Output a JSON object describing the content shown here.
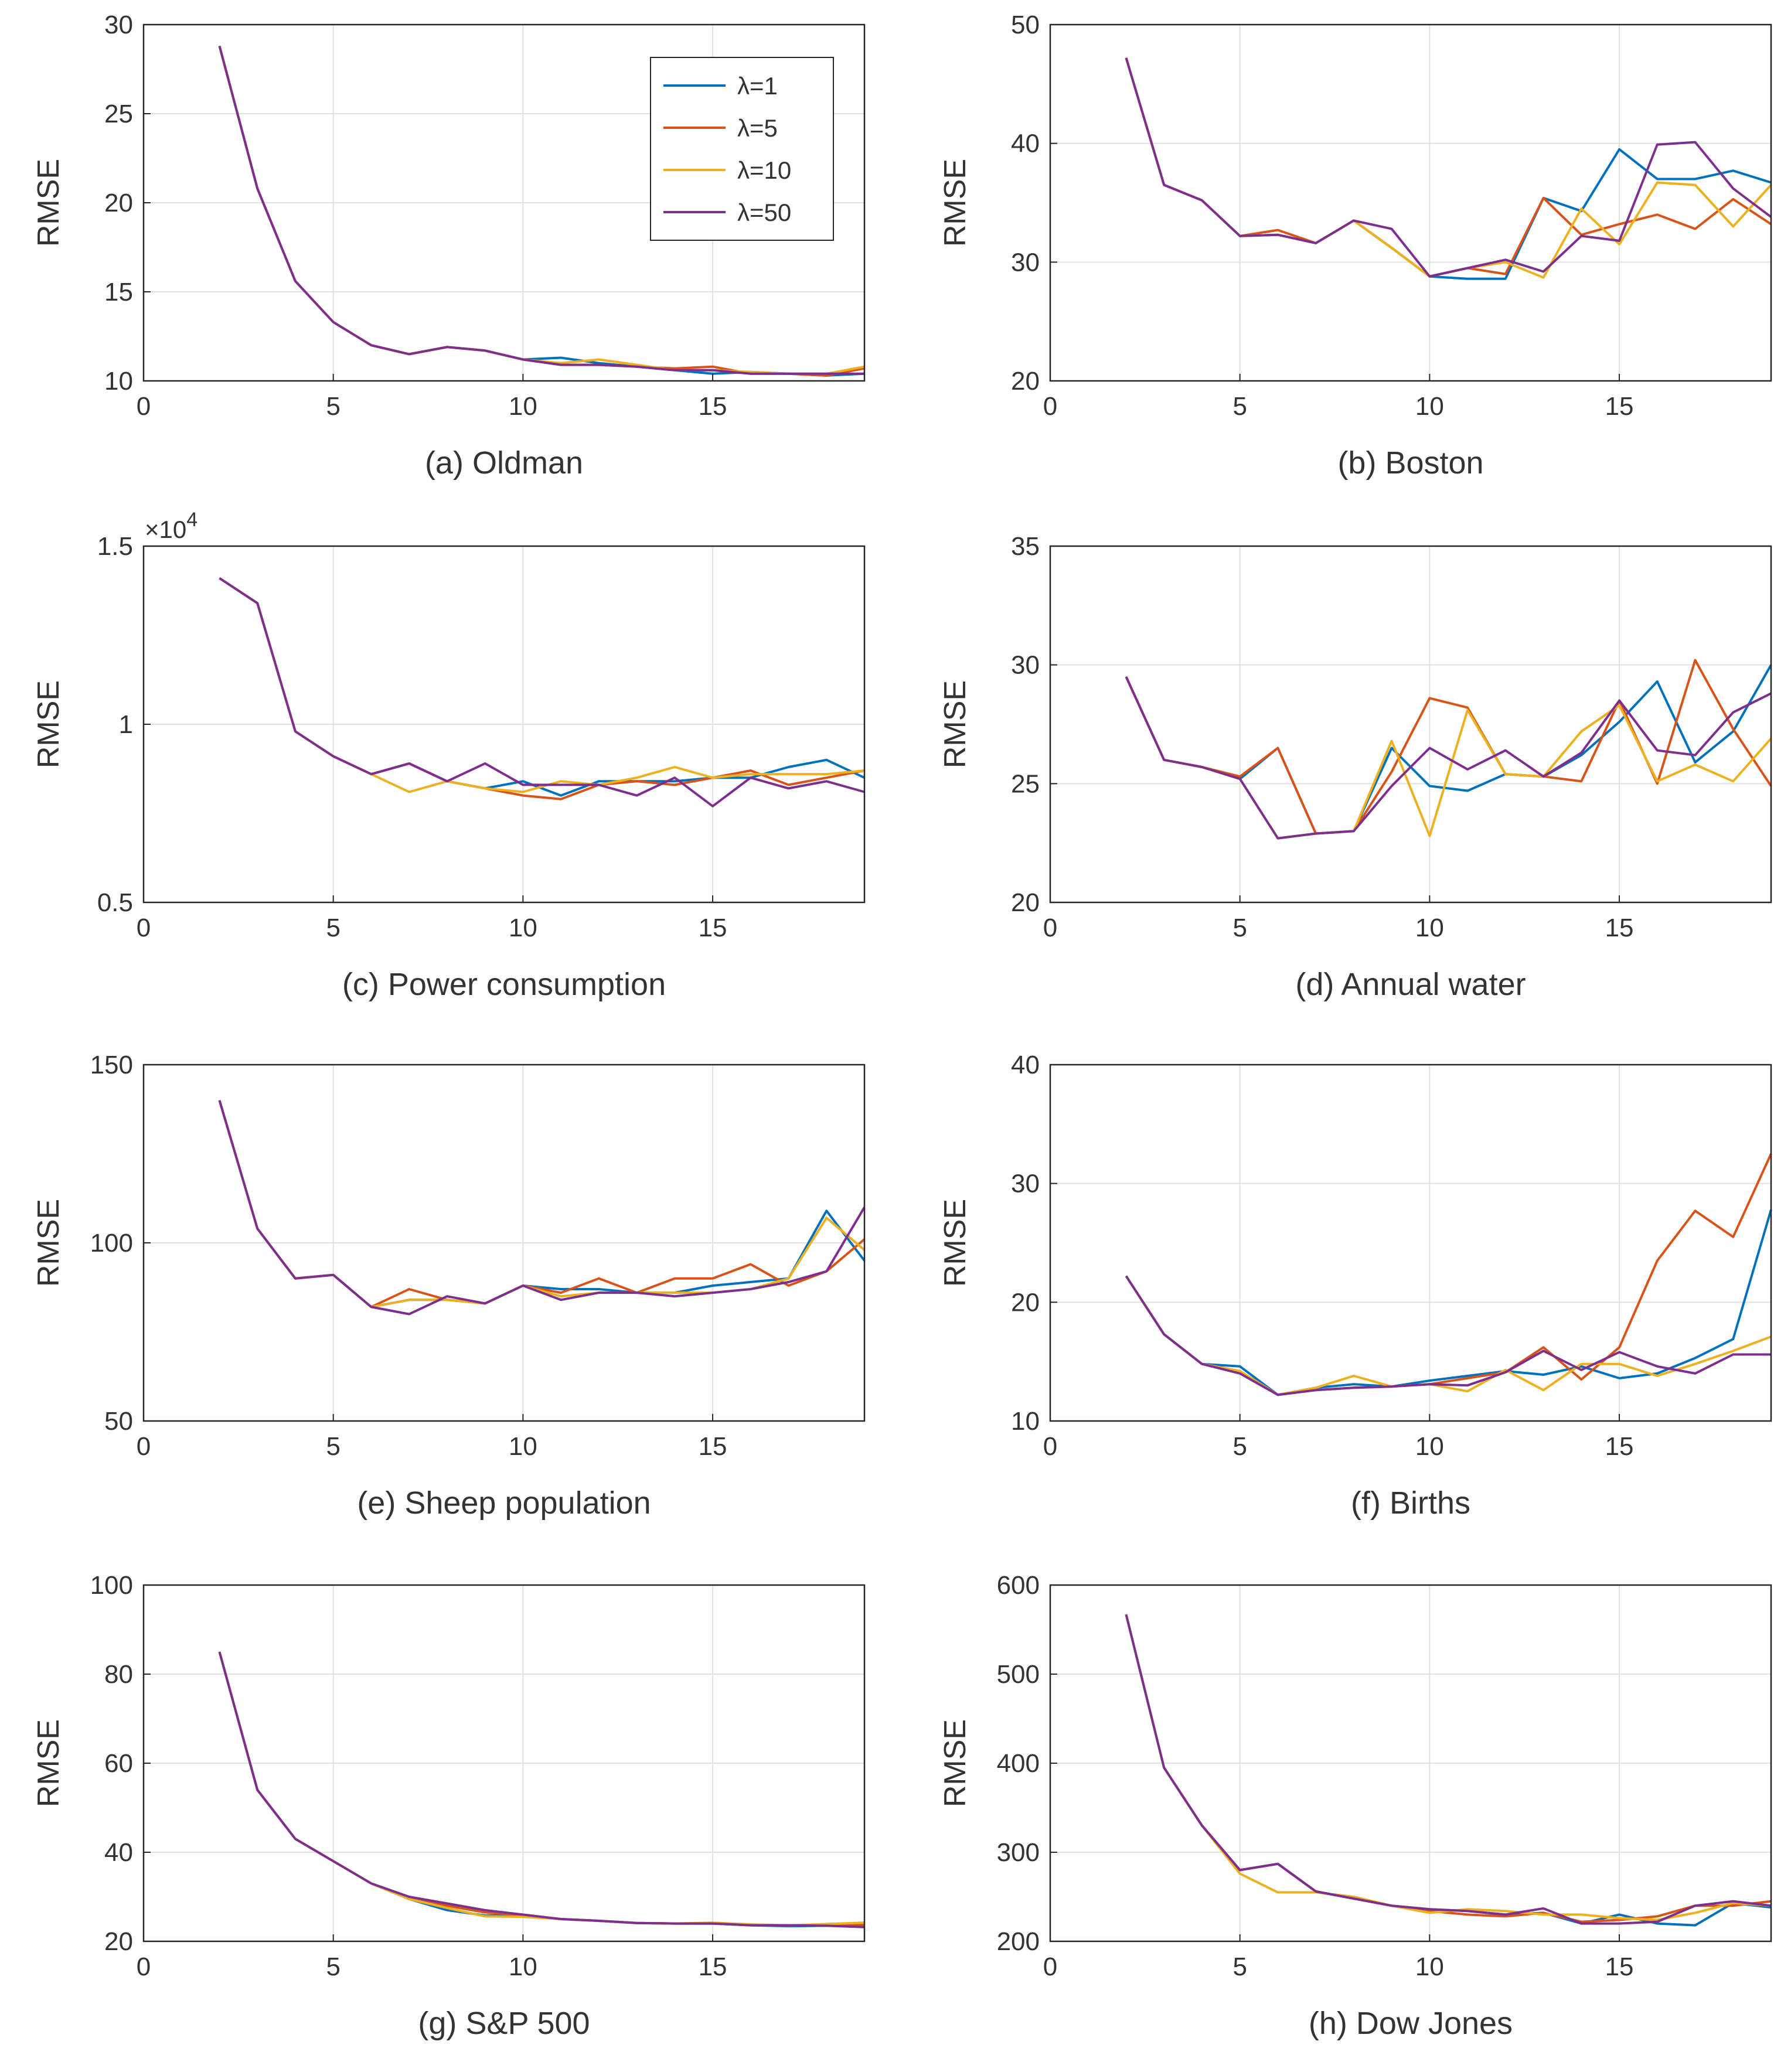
{
  "colors": {
    "lambda1": "#0072BD",
    "lambda5": "#D95319",
    "lambda10": "#EDB120",
    "lambda50": "#7E2F8E",
    "grid": "#e0e0e0",
    "axis": "#262626"
  },
  "legend": [
    "λ=1",
    "λ=5",
    "λ=10",
    "λ=50"
  ],
  "chart_data": [
    {
      "type": "line",
      "title": "(a) Oldman",
      "ylabel": "RMSE",
      "xlim": [
        0,
        19
      ],
      "ylim": [
        10,
        30
      ],
      "xticks": [
        "0",
        "5",
        "10",
        "15"
      ],
      "yticks": [
        "10",
        "15",
        "20",
        "25",
        "30"
      ],
      "x": [
        2,
        3,
        4,
        5,
        6,
        7,
        8,
        9,
        10,
        11,
        12,
        13,
        14,
        15,
        16,
        17,
        18,
        19
      ],
      "series": [
        {
          "name": "λ=1",
          "values": [
            28.8,
            20.8,
            15.6,
            13.3,
            12.0,
            11.5,
            11.9,
            11.7,
            11.2,
            11.3,
            11.0,
            10.8,
            10.6,
            10.4,
            10.5,
            10.4,
            10.3,
            10.4
          ]
        },
        {
          "name": "λ=5",
          "values": [
            28.8,
            20.8,
            15.6,
            13.3,
            12.0,
            11.5,
            11.9,
            11.7,
            11.2,
            10.9,
            10.9,
            10.8,
            10.7,
            10.8,
            10.4,
            10.4,
            10.3,
            10.7
          ]
        },
        {
          "name": "λ=10",
          "values": [
            28.8,
            20.8,
            15.6,
            13.3,
            12.0,
            11.5,
            11.9,
            11.7,
            11.2,
            11.0,
            11.2,
            10.9,
            10.6,
            10.6,
            10.5,
            10.4,
            10.4,
            10.8
          ]
        },
        {
          "name": "λ=50",
          "values": [
            28.8,
            20.8,
            15.6,
            13.3,
            12.0,
            11.5,
            11.9,
            11.7,
            11.2,
            10.9,
            10.9,
            10.8,
            10.6,
            10.6,
            10.4,
            10.4,
            10.4,
            10.4
          ]
        }
      ]
    },
    {
      "type": "line",
      "title": "(b) Boston",
      "ylabel": "RMSE",
      "xlim": [
        0,
        19
      ],
      "ylim": [
        20,
        50
      ],
      "xticks": [
        "0",
        "5",
        "10",
        "15"
      ],
      "yticks": [
        "20",
        "30",
        "40",
        "50"
      ],
      "x": [
        2,
        3,
        4,
        5,
        6,
        7,
        8,
        9,
        10,
        11,
        12,
        13,
        14,
        15,
        16,
        17,
        18,
        19
      ],
      "series": [
        {
          "name": "λ=1",
          "values": [
            47.2,
            36.5,
            35.2,
            32.2,
            32.3,
            31.6,
            33.5,
            31.2,
            28.8,
            28.6,
            28.6,
            35.4,
            34.3,
            39.5,
            37.0,
            37.0,
            37.7,
            36.7
          ]
        },
        {
          "name": "λ=5",
          "values": [
            47.2,
            36.5,
            35.2,
            32.2,
            32.7,
            31.6,
            33.5,
            31.2,
            28.8,
            29.5,
            29.0,
            35.4,
            32.3,
            33.2,
            34.0,
            32.8,
            35.3,
            33.2
          ]
        },
        {
          "name": "λ=10",
          "values": [
            47.2,
            36.5,
            35.2,
            32.2,
            32.3,
            31.6,
            33.5,
            31.2,
            28.8,
            29.5,
            30.0,
            28.7,
            34.5,
            31.5,
            36.7,
            36.5,
            33.0,
            36.5
          ]
        },
        {
          "name": "λ=50",
          "values": [
            47.2,
            36.5,
            35.2,
            32.2,
            32.3,
            31.6,
            33.5,
            32.8,
            28.8,
            29.5,
            30.2,
            29.2,
            32.2,
            31.8,
            39.9,
            40.1,
            36.2,
            33.8
          ]
        }
      ]
    },
    {
      "type": "line",
      "title": "(c) Power consumption",
      "ylabel": "RMSE",
      "multiplier": "×10",
      "multiplier_exp": "4",
      "xlim": [
        0,
        19
      ],
      "ylim": [
        0.5,
        1.5
      ],
      "xticks": [
        "0",
        "5",
        "10",
        "15"
      ],
      "yticks": [
        "0.5",
        "1",
        "1.5"
      ],
      "x": [
        2,
        3,
        4,
        5,
        6,
        7,
        8,
        9,
        10,
        11,
        12,
        13,
        14,
        15,
        16,
        17,
        18,
        19
      ],
      "series": [
        {
          "name": "λ=1",
          "values": [
            1.41,
            1.34,
            0.98,
            0.91,
            0.86,
            0.89,
            0.84,
            0.82,
            0.84,
            0.8,
            0.84,
            0.84,
            0.84,
            0.85,
            0.85,
            0.88,
            0.9,
            0.85
          ]
        },
        {
          "name": "λ=5",
          "values": [
            1.41,
            1.34,
            0.98,
            0.91,
            0.86,
            0.89,
            0.84,
            0.82,
            0.8,
            0.79,
            0.83,
            0.84,
            0.83,
            0.85,
            0.87,
            0.83,
            0.85,
            0.87
          ]
        },
        {
          "name": "λ=10",
          "values": [
            1.41,
            1.34,
            0.98,
            0.91,
            0.86,
            0.81,
            0.84,
            0.82,
            0.81,
            0.84,
            0.83,
            0.85,
            0.88,
            0.85,
            0.86,
            0.86,
            0.86,
            0.87
          ]
        },
        {
          "name": "λ=50",
          "values": [
            1.41,
            1.34,
            0.98,
            0.91,
            0.86,
            0.89,
            0.84,
            0.89,
            0.83,
            0.83,
            0.83,
            0.8,
            0.85,
            0.77,
            0.85,
            0.82,
            0.84,
            0.81
          ]
        }
      ]
    },
    {
      "type": "line",
      "title": "(d) Annual water",
      "ylabel": "RMSE",
      "xlim": [
        0,
        19
      ],
      "ylim": [
        20,
        35
      ],
      "xticks": [
        "0",
        "5",
        "10",
        "15"
      ],
      "yticks": [
        "20",
        "25",
        "30",
        "35"
      ],
      "x": [
        2,
        3,
        4,
        5,
        6,
        7,
        8,
        9,
        10,
        11,
        12,
        13,
        14,
        15,
        16,
        17,
        18,
        19
      ],
      "series": [
        {
          "name": "λ=1",
          "values": [
            29.5,
            26.0,
            25.7,
            25.2,
            26.5,
            22.9,
            23.0,
            26.5,
            24.9,
            24.7,
            25.4,
            25.3,
            26.2,
            27.6,
            29.3,
            25.9,
            27.2,
            30.0
          ]
        },
        {
          "name": "λ=5",
          "values": [
            29.5,
            26.0,
            25.7,
            25.3,
            26.5,
            22.9,
            23.0,
            25.5,
            28.6,
            28.2,
            25.4,
            25.3,
            25.1,
            28.5,
            25.0,
            30.2,
            27.3,
            24.9
          ]
        },
        {
          "name": "λ=10",
          "values": [
            29.5,
            26.0,
            25.7,
            25.2,
            22.7,
            22.9,
            23.0,
            26.8,
            22.8,
            28.1,
            25.4,
            25.3,
            27.2,
            28.3,
            25.1,
            25.8,
            25.1,
            26.9
          ]
        },
        {
          "name": "λ=50",
          "values": [
            29.5,
            26.0,
            25.7,
            25.2,
            22.7,
            22.9,
            23.0,
            24.9,
            26.5,
            25.6,
            26.4,
            25.3,
            26.3,
            28.5,
            26.4,
            26.2,
            28.0,
            28.8
          ]
        }
      ]
    },
    {
      "type": "line",
      "title": "(e) Sheep population",
      "ylabel": "RMSE",
      "xlim": [
        0,
        19
      ],
      "ylim": [
        50,
        150
      ],
      "xticks": [
        "0",
        "5",
        "10",
        "15"
      ],
      "yticks": [
        "50",
        "100",
        "150"
      ],
      "x": [
        2,
        3,
        4,
        5,
        6,
        7,
        8,
        9,
        10,
        11,
        12,
        13,
        14,
        15,
        16,
        17,
        18,
        19
      ],
      "series": [
        {
          "name": "λ=1",
          "values": [
            140,
            104,
            90,
            91,
            82,
            84,
            84,
            83,
            88,
            87,
            87,
            86,
            86,
            88,
            89,
            90,
            109,
            95
          ]
        },
        {
          "name": "λ=5",
          "values": [
            140,
            104,
            90,
            91,
            82,
            87,
            84,
            83,
            88,
            86,
            90,
            86,
            90,
            90,
            94,
            88,
            92,
            101
          ]
        },
        {
          "name": "λ=10",
          "values": [
            140,
            104,
            90,
            91,
            82,
            84,
            84,
            83,
            88,
            85,
            86,
            86,
            86,
            86,
            87,
            90,
            107,
            98
          ]
        },
        {
          "name": "λ=50",
          "values": [
            140,
            104,
            90,
            91,
            82,
            80,
            85,
            83,
            88,
            84,
            86,
            86,
            85,
            86,
            87,
            89,
            92,
            110
          ]
        }
      ]
    },
    {
      "type": "line",
      "title": "(f) Births",
      "ylabel": "RMSE",
      "xlim": [
        0,
        19
      ],
      "ylim": [
        10,
        40
      ],
      "xticks": [
        "0",
        "5",
        "10",
        "15"
      ],
      "yticks": [
        "10",
        "20",
        "30",
        "40"
      ],
      "x": [
        2,
        3,
        4,
        5,
        6,
        7,
        8,
        9,
        10,
        11,
        12,
        13,
        14,
        15,
        16,
        17,
        18,
        19
      ],
      "series": [
        {
          "name": "λ=1",
          "values": [
            22.2,
            17.3,
            14.8,
            14.6,
            12.2,
            12.8,
            13.1,
            12.9,
            13.4,
            13.8,
            14.2,
            13.9,
            14.6,
            13.6,
            14.0,
            15.3,
            16.9,
            27.8
          ]
        },
        {
          "name": "λ=5",
          "values": [
            22.2,
            17.3,
            14.8,
            14.2,
            12.2,
            12.6,
            12.8,
            12.9,
            13.1,
            13.6,
            14.1,
            16.2,
            13.5,
            16.2,
            23.5,
            27.7,
            25.5,
            32.5
          ]
        },
        {
          "name": "λ=10",
          "values": [
            22.2,
            17.3,
            14.8,
            14.2,
            12.2,
            12.8,
            13.8,
            12.9,
            13.1,
            12.5,
            14.3,
            12.6,
            14.8,
            14.8,
            13.8,
            14.8,
            15.9,
            17.1
          ]
        },
        {
          "name": "λ=50",
          "values": [
            22.2,
            17.3,
            14.8,
            14.0,
            12.2,
            12.6,
            12.8,
            12.9,
            13.1,
            13.0,
            14.1,
            15.9,
            14.3,
            15.8,
            14.6,
            14.0,
            15.6,
            15.6
          ]
        }
      ]
    },
    {
      "type": "line",
      "title": "(g) S&P 500",
      "ylabel": "RMSE",
      "xlim": [
        0,
        19
      ],
      "ylim": [
        20,
        100
      ],
      "xticks": [
        "0",
        "5",
        "10",
        "15"
      ],
      "yticks": [
        "20",
        "40",
        "60",
        "80",
        "100"
      ],
      "x": [
        2,
        3,
        4,
        5,
        6,
        7,
        8,
        9,
        10,
        11,
        12,
        13,
        14,
        15,
        16,
        17,
        18,
        19
      ],
      "series": [
        {
          "name": "λ=1",
          "values": [
            85,
            54,
            43,
            38,
            33,
            29.5,
            27,
            25.8,
            25.8,
            25.0,
            24.6,
            24.1,
            24.0,
            24.0,
            23.6,
            23.4,
            23.5,
            23.5
          ]
        },
        {
          "name": "λ=5",
          "values": [
            85,
            54,
            43,
            38,
            33,
            29.5,
            28,
            26.5,
            25.8,
            25.0,
            24.6,
            24.1,
            24.0,
            24.0,
            23.6,
            23.5,
            23.8,
            23.7
          ]
        },
        {
          "name": "λ=10",
          "values": [
            85,
            54,
            43,
            38,
            33,
            29.5,
            27.5,
            25.6,
            25.5,
            25.0,
            24.6,
            24.1,
            24.0,
            24.2,
            23.8,
            23.6,
            23.9,
            24.2
          ]
        },
        {
          "name": "λ=50",
          "values": [
            85,
            54,
            43,
            38,
            33,
            30,
            28.5,
            27,
            26,
            25.0,
            24.6,
            24.1,
            24.0,
            24.0,
            23.6,
            23.6,
            23.5,
            23.2
          ]
        }
      ]
    },
    {
      "type": "line",
      "title": "(h) Dow Jones",
      "ylabel": "RMSE",
      "xlim": [
        0,
        19
      ],
      "ylim": [
        200,
        600
      ],
      "xticks": [
        "0",
        "5",
        "10",
        "15"
      ],
      "yticks": [
        "200",
        "300",
        "400",
        "500",
        "600"
      ],
      "x": [
        2,
        3,
        4,
        5,
        6,
        7,
        8,
        9,
        10,
        11,
        12,
        13,
        14,
        15,
        16,
        17,
        18,
        19
      ],
      "series": [
        {
          "name": "λ=1",
          "values": [
            567,
            395,
            330,
            280,
            287,
            256,
            248,
            240,
            236,
            234,
            230,
            232,
            220,
            230,
            220,
            218,
            243,
            238
          ]
        },
        {
          "name": "λ=5",
          "values": [
            567,
            395,
            330,
            280,
            287,
            256,
            248,
            240,
            234,
            230,
            228,
            232,
            222,
            224,
            228,
            240,
            240,
            245
          ]
        },
        {
          "name": "λ=10",
          "values": [
            567,
            395,
            330,
            276,
            255,
            255,
            250,
            240,
            232,
            236,
            234,
            230,
            230,
            226,
            224,
            232,
            243,
            240
          ]
        },
        {
          "name": "λ=50",
          "values": [
            567,
            395,
            330,
            280,
            287,
            256,
            248,
            240,
            236,
            234,
            230,
            237,
            220,
            220,
            222,
            240,
            245,
            240
          ]
        }
      ]
    }
  ]
}
